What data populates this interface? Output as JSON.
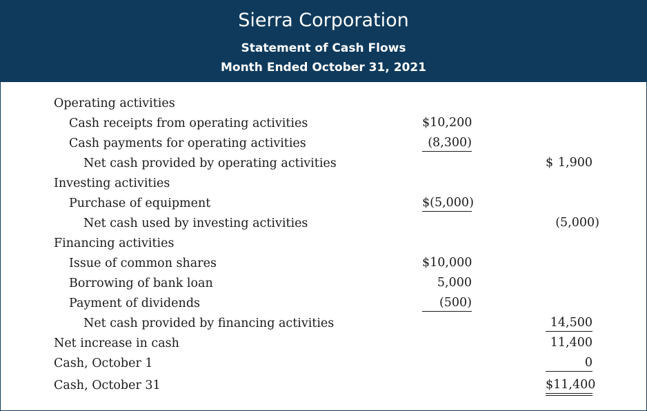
{
  "header": {
    "company": "Sierra Corporation",
    "statement": "Statement of Cash Flows",
    "period": "Month Ended October 31, 2021"
  },
  "rows": [
    {
      "label": "Operating activities"
    },
    {
      "label": "Cash receipts from operating activities",
      "amount1": "$10,200"
    },
    {
      "label": "Cash payments for operating activities",
      "amount1": "(8,300)"
    },
    {
      "label": "Net cash provided by operating activities",
      "amount2_symbol": "$",
      "amount2": "1,900"
    },
    {
      "label": "Investing activities"
    },
    {
      "label": "Purchase of equipment",
      "amount1_symbol": "$",
      "amount1": "(5,000)"
    },
    {
      "label": "Net cash used by investing activities",
      "amount2": "(5,000)"
    },
    {
      "label": "Financing activities"
    },
    {
      "label": "Issue of common shares",
      "amount1": "$10,000"
    },
    {
      "label": "Borrowing of bank loan",
      "amount1": "5,000"
    },
    {
      "label": "Payment of dividends",
      "amount1": "(500)"
    },
    {
      "label": "Net cash provided by financing activities",
      "amount2": "14,500"
    },
    {
      "label": "Net increase in cash",
      "amount2": "11,400"
    },
    {
      "label": "Cash, October 1",
      "amount2": "0"
    },
    {
      "label": "Cash, October 31",
      "amount2": "$11,400"
    }
  ]
}
